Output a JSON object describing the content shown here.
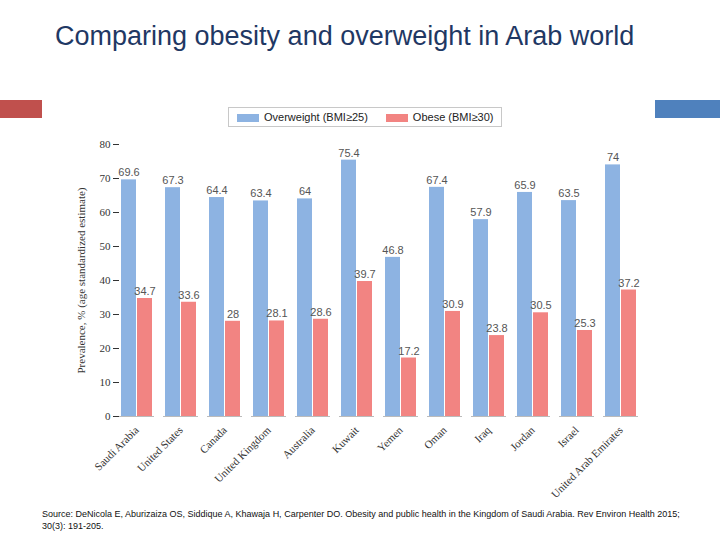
{
  "chart_data": {
    "type": "bar",
    "title": "Comparing obesity and overweight in Arab world",
    "y_label": "Prevalence, % (age standardized estimate)",
    "categories": [
      "Saudi Arabia",
      "United States",
      "Canada",
      "United Kingdom",
      "Australia",
      "Kuwait",
      "Yemen",
      "Oman",
      "Iraq",
      "Jordan",
      "Israel",
      "United Arab Emirates"
    ],
    "series": [
      {
        "name": "Overweight (BMI≥25)",
        "color": "#8db3e2",
        "values": [
          69.6,
          67.3,
          64.4,
          63.4,
          64,
          75.4,
          46.8,
          67.4,
          57.9,
          65.9,
          63.5,
          74
        ]
      },
      {
        "name": "Obese (BMI≥30)",
        "color": "#f28482",
        "values": [
          34.7,
          33.6,
          28,
          28.1,
          28.6,
          39.7,
          17.2,
          30.9,
          23.8,
          30.5,
          25.3,
          37.2
        ]
      }
    ],
    "ylim": [
      0,
      80
    ],
    "yticks": [
      0,
      10,
      20,
      30,
      40,
      50,
      60,
      70,
      80
    ],
    "grid": false,
    "legend": "top",
    "data_labels": true,
    "source": "Source: DeNicola E, Aburizaiza OS, Siddique A, Khawaja H, Carpenter DO. Obesity and public health in the Kingdom of Saudi Arabia. Rev Environ Health 2015; 30(3): 191-205."
  }
}
